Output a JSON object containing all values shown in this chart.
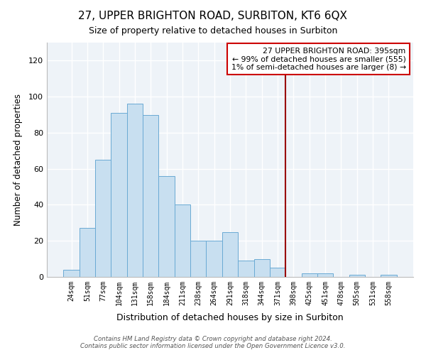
{
  "title": "27, UPPER BRIGHTON ROAD, SURBITON, KT6 6QX",
  "subtitle": "Size of property relative to detached houses in Surbiton",
  "xlabel": "Distribution of detached houses by size in Surbiton",
  "ylabel": "Number of detached properties",
  "bar_labels": [
    "24sqm",
    "51sqm",
    "77sqm",
    "104sqm",
    "131sqm",
    "158sqm",
    "184sqm",
    "211sqm",
    "238sqm",
    "264sqm",
    "291sqm",
    "318sqm",
    "344sqm",
    "371sqm",
    "398sqm",
    "425sqm",
    "451sqm",
    "478sqm",
    "505sqm",
    "531sqm",
    "558sqm"
  ],
  "bar_values": [
    4,
    27,
    65,
    91,
    96,
    90,
    56,
    40,
    20,
    20,
    25,
    9,
    10,
    5,
    0,
    2,
    2,
    0,
    1,
    0,
    1
  ],
  "bar_color": "#c8dff0",
  "bar_edge_color": "#6aaad4",
  "vline_index": 14,
  "vline_color": "#990000",
  "ylim": [
    0,
    130
  ],
  "yticks": [
    0,
    20,
    40,
    60,
    80,
    100,
    120
  ],
  "annotation_title": "27 UPPER BRIGHTON ROAD: 395sqm",
  "annotation_line1": "← 99% of detached houses are smaller (555)",
  "annotation_line2": "1% of semi-detached houses are larger (8) →",
  "annotation_box_facecolor": "#ffffff",
  "annotation_box_edgecolor": "#cc0000",
  "plot_bg_color": "#eef3f8",
  "fig_bg_color": "#ffffff",
  "grid_color": "#ffffff",
  "footer_line1": "Contains HM Land Registry data © Crown copyright and database right 2024.",
  "footer_line2": "Contains public sector information licensed under the Open Government Licence v3.0."
}
